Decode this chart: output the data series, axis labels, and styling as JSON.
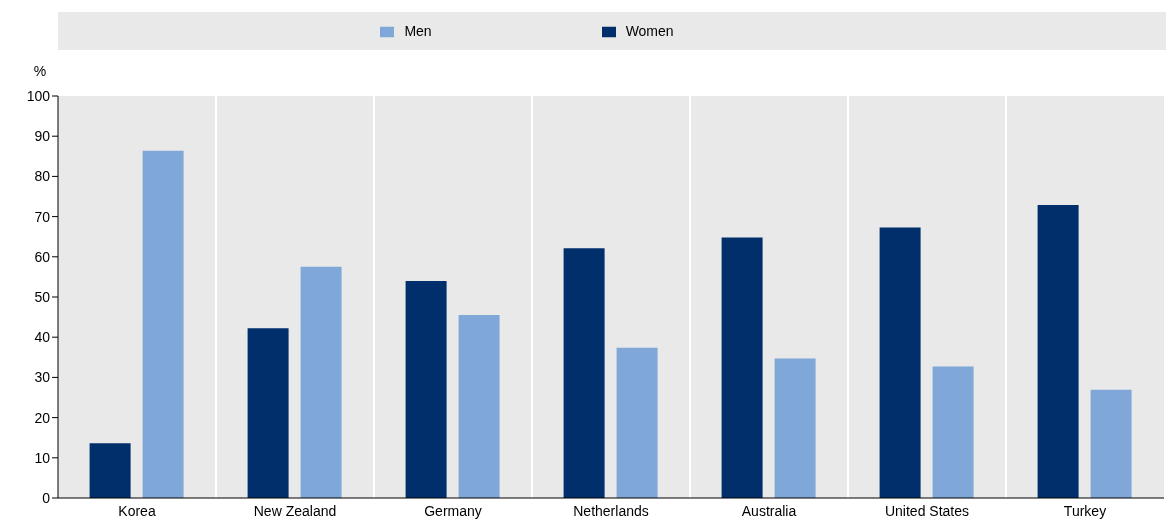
{
  "chart_data": {
    "type": "bar",
    "ylabel": "%",
    "categories": [
      "Korea",
      "New Zealand",
      "Germany",
      "Netherlands",
      "Australia",
      "United States",
      "Turkey"
    ],
    "series": [
      {
        "name": "Women",
        "color": "#002f6c",
        "values": [
          13.6,
          42.2,
          54.0,
          62.1,
          64.8,
          67.3,
          72.9
        ]
      },
      {
        "name": "Men",
        "color": "#7fa8d8",
        "values": [
          86.4,
          57.5,
          45.5,
          37.4,
          34.7,
          32.7,
          26.9
        ]
      }
    ],
    "ylim": [
      0,
      100
    ],
    "yticks": [
      0,
      10,
      20,
      30,
      40,
      50,
      60,
      70,
      80,
      90,
      100
    ],
    "grid": "x",
    "legend": "top"
  }
}
